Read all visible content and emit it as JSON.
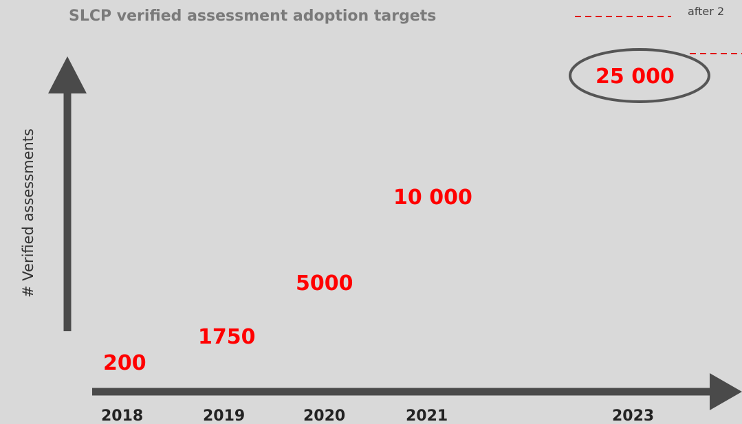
{
  "title": "SLCP verified assessment adoption targets",
  "note": "after 2",
  "y_axis_label": "# Verified assessments",
  "years": [
    "2018",
    "2019",
    "2020",
    "2021",
    "2023"
  ],
  "targets": [
    "200",
    "1750",
    "5000",
    "10 000",
    "25 000"
  ]
}
